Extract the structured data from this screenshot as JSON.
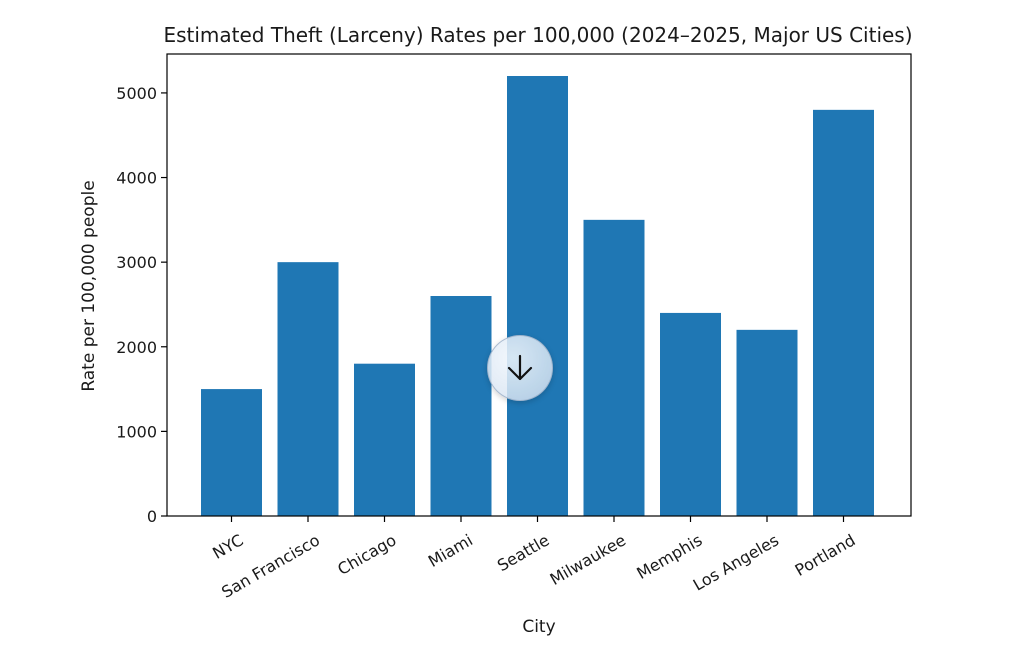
{
  "chart_data": {
    "type": "bar",
    "title": "Estimated Theft (Larceny) Rates per 100,000 (2024–2025, Major US Cities)",
    "xlabel": "City",
    "ylabel": "Rate per 100,000 people",
    "categories": [
      "NYC",
      "San Francisco",
      "Chicago",
      "Miami",
      "Seattle",
      "Milwaukee",
      "Memphis",
      "Los Angeles",
      "Portland"
    ],
    "values": [
      1500,
      3000,
      1800,
      2600,
      5200,
      3500,
      2400,
      2200,
      4800
    ],
    "ylim": [
      0,
      5460
    ],
    "yticks": [
      0,
      1000,
      2000,
      3000,
      4000,
      5000
    ],
    "ytick_labels": [
      "0",
      "1000",
      "2000",
      "3000",
      "4000",
      "5000"
    ],
    "bar_color": "#1f77b4",
    "grid": false,
    "legend": "none"
  },
  "overlay": {
    "scroll_icon": "arrow-down-icon"
  }
}
